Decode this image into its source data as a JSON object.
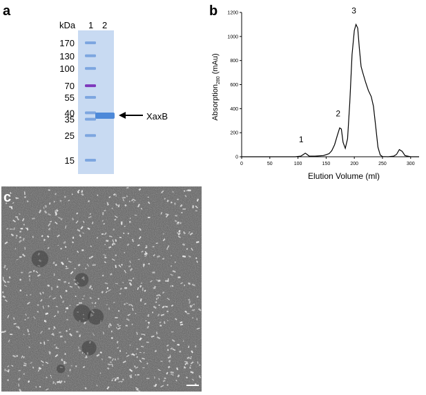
{
  "panel_a": {
    "letter": "a",
    "kda_label": "kDa",
    "lane_labels": [
      "1",
      "2"
    ],
    "markers": [
      {
        "label": "170",
        "kda": 170
      },
      {
        "label": "130",
        "kda": 130
      },
      {
        "label": "100",
        "kda": 100
      },
      {
        "label": "70",
        "kda": 70
      },
      {
        "label": "55",
        "kda": 55
      },
      {
        "label": "40",
        "kda": 40
      },
      {
        "label": "35",
        "kda": 35
      },
      {
        "label": "25",
        "kda": 25
      },
      {
        "label": "15",
        "kda": 15
      }
    ],
    "band_label": "XaxB",
    "colors": {
      "gel": "#c5d7f0",
      "band": "#3f7fd6",
      "marker70": "#7a2fb8"
    }
  },
  "panel_b": {
    "letter": "b",
    "peak_labels": [
      "1",
      "2",
      "3"
    ]
  },
  "panel_c": {
    "letter": "c"
  },
  "chart_data": {
    "type": "line",
    "title": "",
    "xlabel": "Elution Volume (ml)",
    "ylabel": "Absorption",
    "ylabel_sub": "280",
    "ylabel_unit": " (mAu)",
    "xlim": [
      0,
      315
    ],
    "ylim": [
      0,
      1200
    ],
    "xticks": [
      0,
      50,
      100,
      150,
      200,
      250,
      300
    ],
    "yticks": [
      0,
      200,
      400,
      600,
      800,
      1000,
      1200
    ],
    "grid": false,
    "series": [
      {
        "x": [
          0,
          95,
          105,
          110,
          113,
          116,
          120,
          130,
          145,
          155,
          160,
          165,
          170,
          174,
          177,
          180,
          184,
          188,
          192,
          196,
          200,
          203,
          206,
          209,
          212,
          215,
          220,
          225,
          230,
          234,
          238,
          242,
          246,
          250,
          260,
          270,
          275,
          280,
          285,
          290,
          300,
          315
        ],
        "y": [
          0,
          0,
          5,
          20,
          30,
          20,
          5,
          5,
          10,
          25,
          50,
          100,
          180,
          240,
          230,
          120,
          70,
          150,
          450,
          850,
          1050,
          1100,
          1070,
          900,
          750,
          700,
          620,
          550,
          500,
          420,
          250,
          80,
          15,
          2,
          0,
          5,
          20,
          60,
          45,
          10,
          0,
          0
        ]
      }
    ],
    "peaks": [
      {
        "label": "1",
        "x": 113,
        "y": 30
      },
      {
        "label": "2",
        "x": 175,
        "y": 245
      },
      {
        "label": "3",
        "x": 203,
        "y": 1100
      }
    ]
  }
}
